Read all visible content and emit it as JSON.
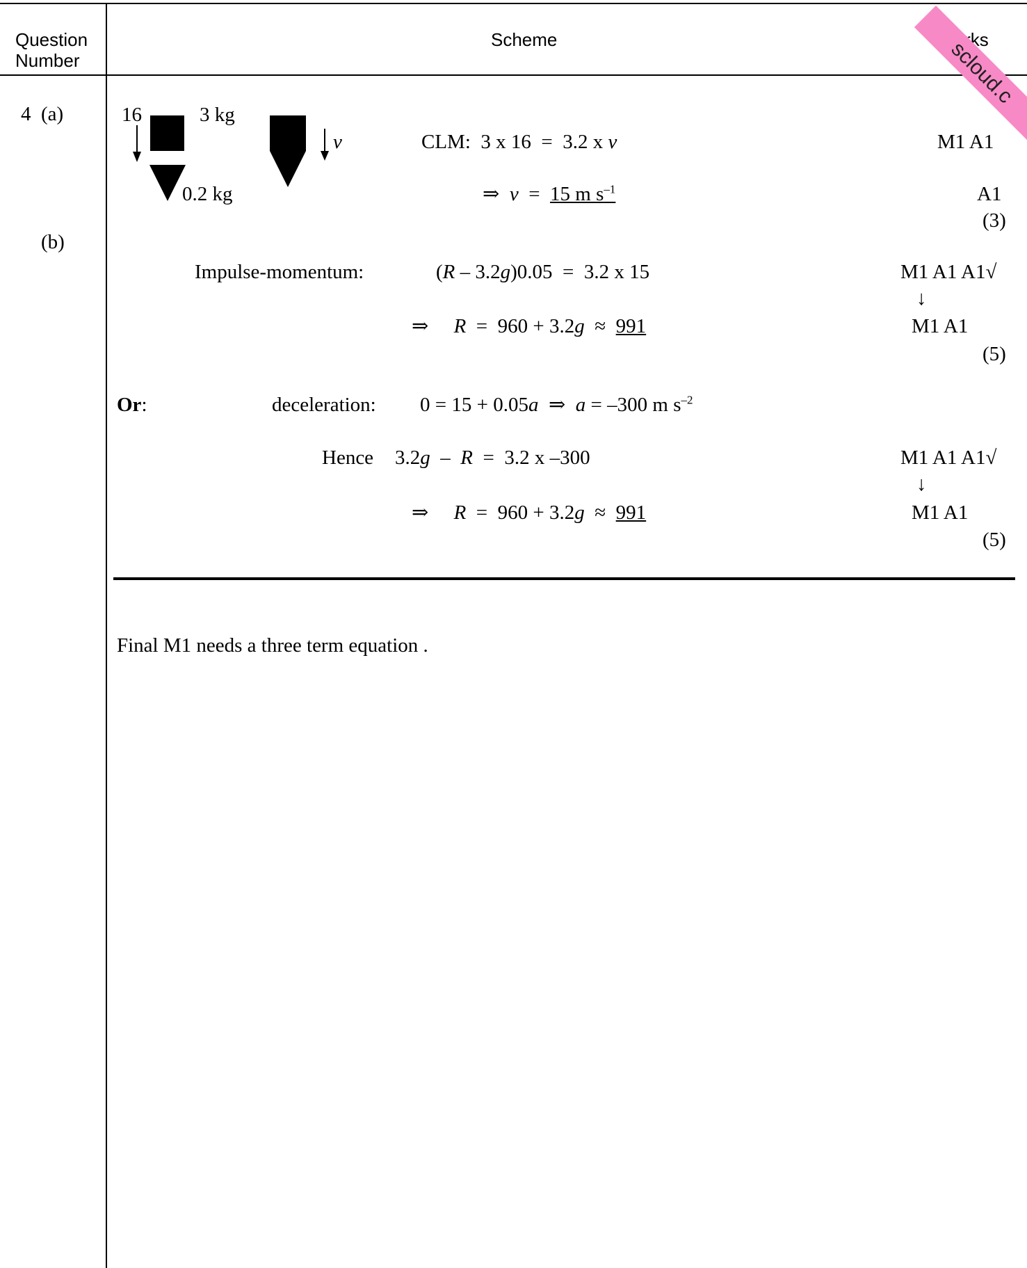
{
  "header": {
    "question_number_label": "Question Number",
    "scheme_label": "Scheme",
    "marks_label": "Marks"
  },
  "watermark": {
    "text": "scloud.c",
    "color": "#f78ac6"
  },
  "question": {
    "number": "4",
    "part_a": "(a)",
    "part_b": "(b)"
  },
  "diagram": {
    "speed_label": "16",
    "mass_block": "3 kg",
    "mass_cone": "0.2 kg",
    "velocity_label": "v"
  },
  "part_a": {
    "clm_prefix": "CLM:  3 x 16  =  3.2 x ",
    "clm_var": "v",
    "clm_marks": "M1 A1",
    "result_prefix": "⇒  ",
    "result_var": "v",
    "result_eq": "  =  ",
    "result_value": "15 m s",
    "result_exp": "–1",
    "result_marks": "A1",
    "total": "(3)"
  },
  "part_b": {
    "impulse_label": "Impulse-momentum:",
    "impulse_eq_r": "R",
    "impulse_eq_mid": " – 3.2",
    "impulse_eq_g": "g",
    "impulse_eq_end": ")0.05  =  3.2 x 15",
    "impulse_marks": "M1 A1 A1√",
    "dep_arrow": "↓",
    "result_prefix": "⇒     ",
    "result_r": "R",
    "result_mid": "  =  960 + 3.2",
    "result_g": "g",
    "result_approx": "  ≈  ",
    "result_value": "991",
    "result_marks": "M1  A1",
    "total": "(5)"
  },
  "alternative": {
    "or_label": "Or",
    "or_colon": ":",
    "decel_label": "deceleration:",
    "decel_eq_start": "0 = 15 + 0.05",
    "decel_a1": "a",
    "decel_arrow": "  ⇒  ",
    "decel_a2": "a",
    "decel_eq_end": " = –300 m s",
    "decel_exp": "–2",
    "hence_label": "Hence",
    "hence_eq_start": "3.2",
    "hence_g": "g",
    "hence_mid": "  –  ",
    "hence_r": "R",
    "hence_end": "  =  3.2 x –300",
    "hence_marks": "M1 A1 A1√",
    "dep_arrow": "↓",
    "result_prefix": "⇒     ",
    "result_r": "R",
    "result_mid": "  =  960 + 3.2",
    "result_g": "g",
    "result_approx": "  ≈  ",
    "result_value": "991",
    "result_marks": "M1  A1",
    "total": "(5)"
  },
  "note": "Final M1 needs a three term equation ."
}
